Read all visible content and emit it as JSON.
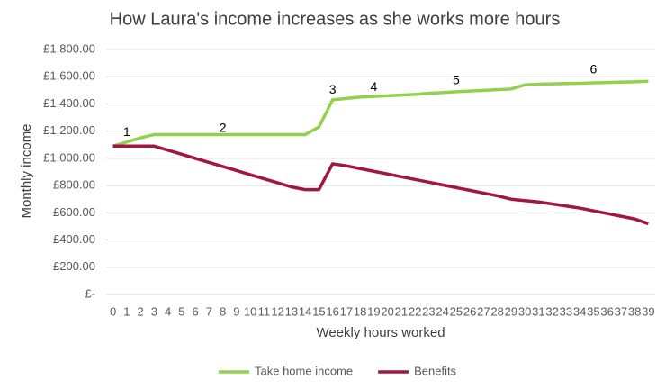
{
  "chart_data": {
    "type": "line",
    "title": "How Laura's income increases as she works more hours",
    "x_label": "Weekly hours worked",
    "y_label": "Monthly income",
    "categories": [
      "0",
      "1",
      "2",
      "3",
      "4",
      "5",
      "6",
      "7",
      "8",
      "9",
      "10",
      "11",
      "12",
      "13",
      "14",
      "15",
      "16",
      "17",
      "18",
      "19",
      "20",
      "21",
      "22",
      "23",
      "24",
      "25",
      "26",
      "27",
      "28",
      "29",
      "30",
      "31",
      "32",
      "33",
      "34",
      "35",
      "36",
      "37",
      "38",
      "39"
    ],
    "series": [
      {
        "name": "Take home income",
        "color": "#92d050",
        "values": [
          1090,
          1120,
          1150,
          1175,
          1175,
          1175,
          1175,
          1175,
          1175,
          1175,
          1175,
          1175,
          1175,
          1175,
          1175,
          1230,
          1430,
          1440,
          1450,
          1455,
          1460,
          1465,
          1470,
          1478,
          1483,
          1490,
          1495,
          1500,
          1505,
          1510,
          1540,
          1545,
          1548,
          1550,
          1552,
          1555,
          1558,
          1560,
          1563,
          1567
        ]
      },
      {
        "name": "Benefits",
        "color": "#a0173f",
        "values": [
          1090,
          1090,
          1090,
          1090,
          1060,
          1030,
          1000,
          970,
          940,
          910,
          880,
          850,
          820,
          790,
          770,
          770,
          960,
          945,
          925,
          905,
          885,
          865,
          845,
          825,
          805,
          785,
          765,
          745,
          725,
          700,
          690,
          680,
          665,
          650,
          635,
          615,
          595,
          575,
          555,
          520
        ]
      }
    ],
    "annotations": [
      {
        "text": "1",
        "x": 1,
        "y": 1190
      },
      {
        "text": "2",
        "x": 8,
        "y": 1220
      },
      {
        "text": "3",
        "x": 16,
        "y": 1500
      },
      {
        "text": "4",
        "x": 19,
        "y": 1520
      },
      {
        "text": "5",
        "x": 25,
        "y": 1570
      },
      {
        "text": "6",
        "x": 35,
        "y": 1650
      }
    ],
    "ylim": [
      0,
      1800
    ],
    "yticks": [
      {
        "value": 0,
        "label": "£-"
      },
      {
        "value": 200,
        "label": "£200.00"
      },
      {
        "value": 400,
        "label": "£400.00"
      },
      {
        "value": 600,
        "label": "£600.00"
      },
      {
        "value": 800,
        "label": "£800.00"
      },
      {
        "value": 1000,
        "label": "£1,000.00"
      },
      {
        "value": 1200,
        "label": "£1,200.00"
      },
      {
        "value": 1400,
        "label": "£1,400.00"
      },
      {
        "value": 1600,
        "label": "£1,600.00"
      },
      {
        "value": 1800,
        "label": "£1,800.00"
      }
    ],
    "grid": true,
    "legend": "bottom"
  }
}
